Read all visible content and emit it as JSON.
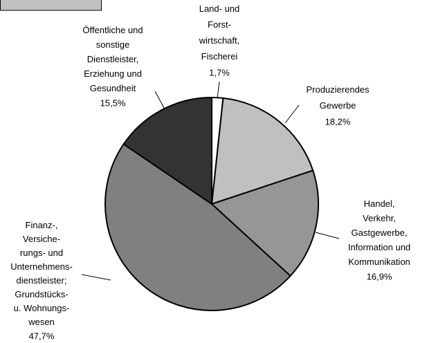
{
  "chart_data": {
    "type": "pie",
    "categories": [
      "Land- und\nForst-\nwirtschaft,\nFischerei",
      "Produzierendes\nGewerbe",
      "Handel,\nVerkehr,\nGastgewerbe,\nInformation und\nKommunikation",
      "Finanz-,\nVersiche-\nrungs- und\nUnternehmens-\ndienstleister;\nGrundstücks-\nu. Wohnungs-\nwesen",
      "Öffentliche und\nsonstige\nDienstleister,\nErziehung und\nGesundheit"
    ],
    "values": [
      1.7,
      18.2,
      16.9,
      47.7,
      15.5
    ],
    "value_labels": [
      "1,7%",
      "18,2%",
      "16,9%",
      "47,7%",
      "15,5%"
    ],
    "colors": [
      "#ffffff",
      "#c0c0c0",
      "#969696",
      "#808080",
      "#333333"
    ]
  }
}
